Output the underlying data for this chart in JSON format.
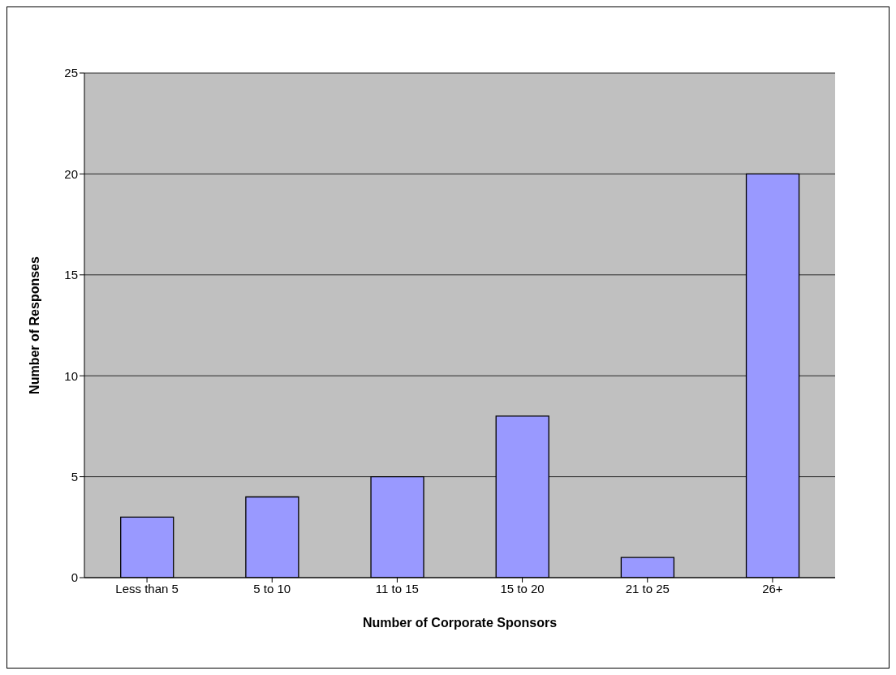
{
  "chart_data": {
    "type": "bar",
    "xlabel": "Number of Corporate Sponsors",
    "ylabel": "Number of Responses",
    "categories": [
      "Less than 5",
      "5 to 10",
      "11 to 15",
      "15 to 20",
      "21 to 25",
      "26+"
    ],
    "values": [
      3,
      4,
      5,
      8,
      1,
      20
    ],
    "color": "#9999ff",
    "ylim": [
      0,
      25
    ],
    "yticks": [
      0,
      5,
      10,
      15,
      20,
      25
    ],
    "grid": "y",
    "legend": false
  }
}
